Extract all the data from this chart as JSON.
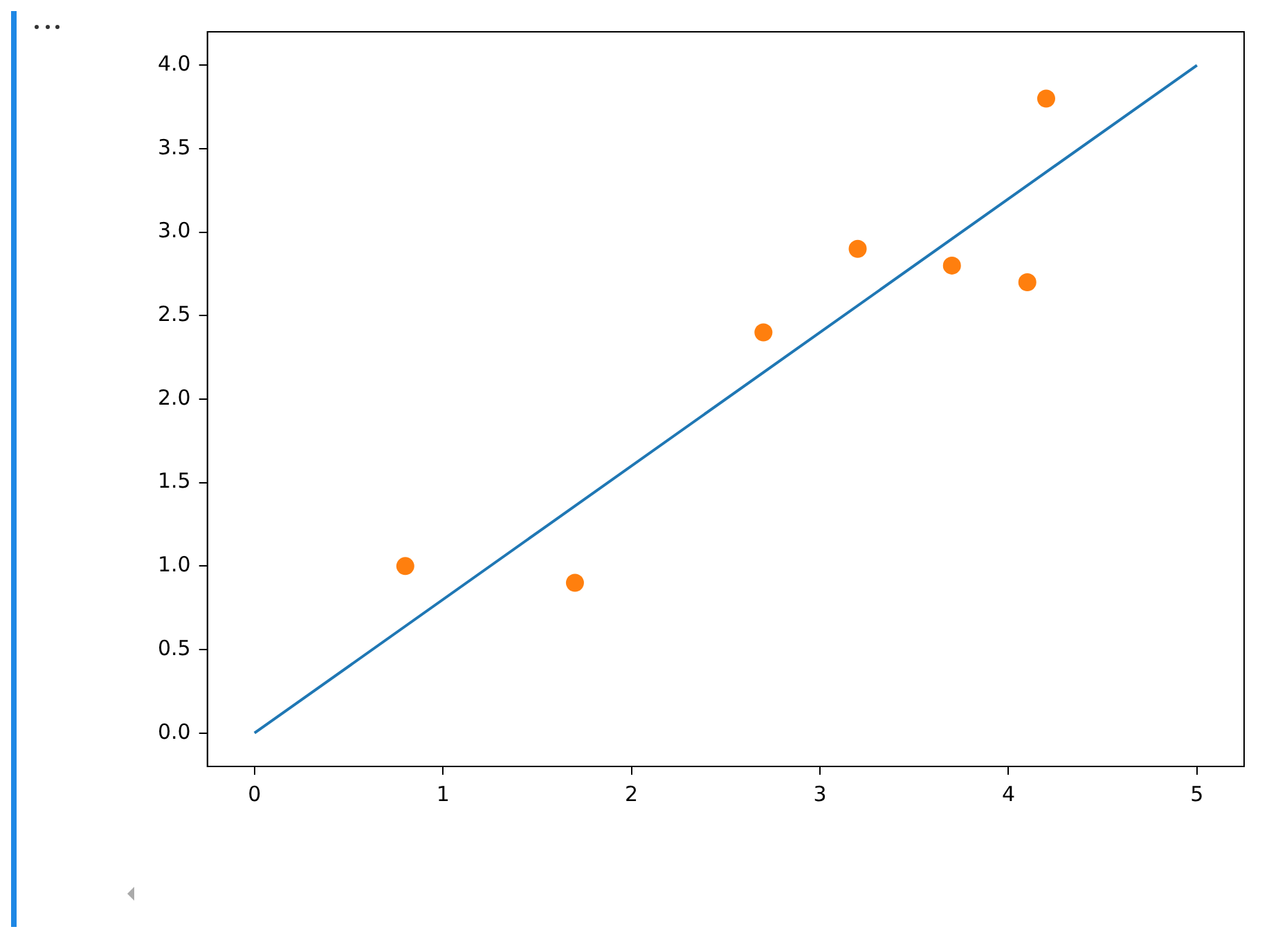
{
  "chart_data": {
    "type": "scatter",
    "xlim": [
      -0.25,
      5.25
    ],
    "ylim": [
      -0.2,
      4.2
    ],
    "xticks": [
      0,
      1,
      2,
      3,
      4,
      5
    ],
    "yticks": [
      {
        "value": 0,
        "label": "0.0"
      },
      {
        "value": 0.5,
        "label": "0.5"
      },
      {
        "value": 1,
        "label": "1.0"
      },
      {
        "value": 1.5,
        "label": "1.5"
      },
      {
        "value": 2,
        "label": "2.0"
      },
      {
        "value": 2.5,
        "label": "2.5"
      },
      {
        "value": 3,
        "label": "3.0"
      },
      {
        "value": 3.5,
        "label": "3.5"
      },
      {
        "value": 4,
        "label": "4.0"
      }
    ],
    "grid": false,
    "legend": false,
    "series": [
      {
        "type": "line",
        "color": "#1f77b4",
        "marker": "none",
        "x": [
          0,
          5
        ],
        "values": [
          0,
          4
        ]
      },
      {
        "type": "scatter",
        "color": "#ff7f0e",
        "marker": "circle",
        "x": [
          0.8,
          1.7,
          2.7,
          3.2,
          3.7,
          4.1,
          4.2
        ],
        "values": [
          1.0,
          0.9,
          2.4,
          2.9,
          2.8,
          2.7,
          3.8
        ]
      }
    ]
  }
}
